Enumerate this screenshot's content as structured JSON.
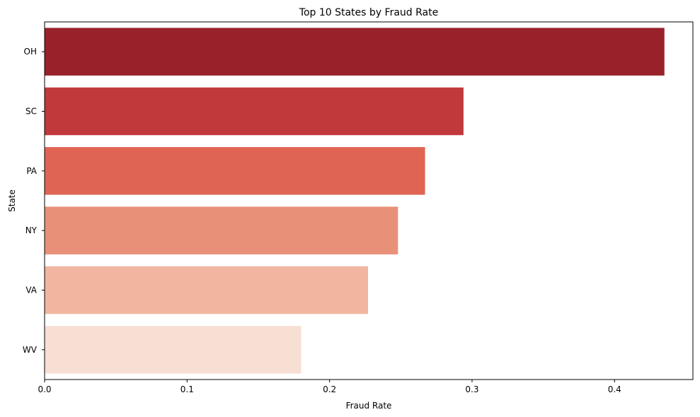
{
  "chart_data": {
    "type": "bar",
    "orientation": "horizontal",
    "title": "Top 10 States by Fraud Rate",
    "xlabel": "Fraud Rate",
    "ylabel": "State",
    "categories": [
      "OH",
      "SC",
      "PA",
      "NY",
      "VA",
      "WV"
    ],
    "values": [
      0.435,
      0.294,
      0.267,
      0.248,
      0.227,
      0.18
    ],
    "colors": [
      "#99222a",
      "#c0393b",
      "#df6454",
      "#e89078",
      "#f0b6a0",
      "#f7dfd3"
    ],
    "xlim": [
      0,
      0.455
    ],
    "xticks": [
      0.0,
      0.1,
      0.2,
      0.3,
      0.4
    ],
    "xtick_labels": [
      "0.0",
      "0.1",
      "0.2",
      "0.3",
      "0.4"
    ],
    "grid": false,
    "legend": "none"
  }
}
